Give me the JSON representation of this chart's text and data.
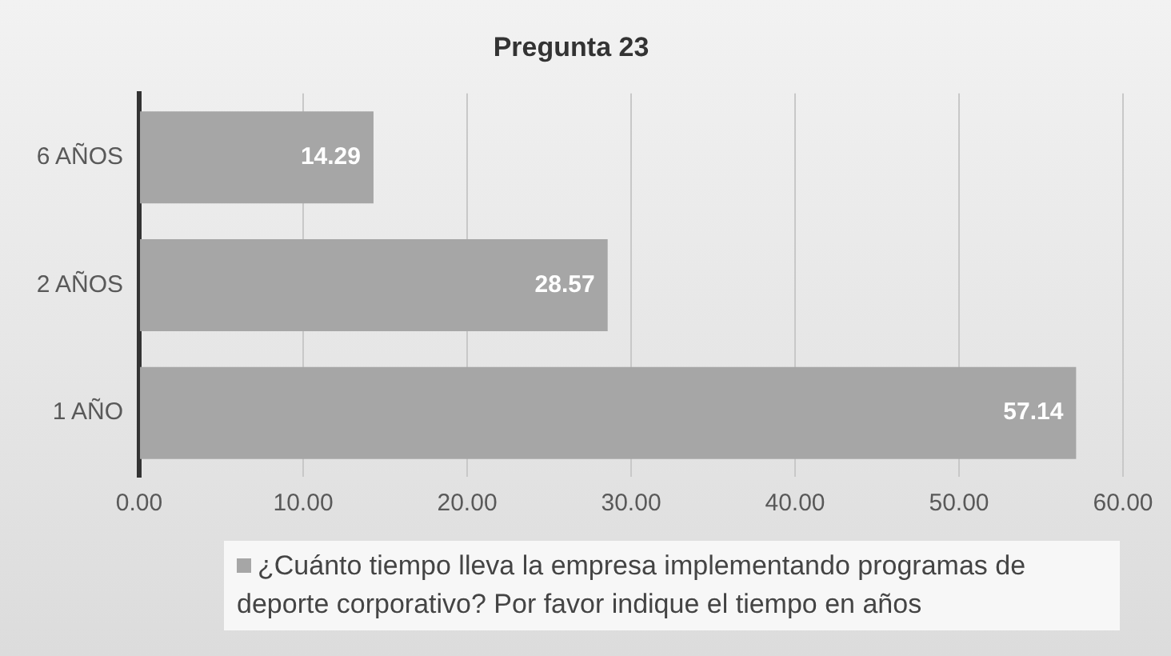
{
  "chart_data": {
    "type": "bar",
    "title": "Pregunta 23",
    "orientation": "horizontal",
    "categories": [
      "6 AÑOS",
      "2 AÑOS",
      "1 AÑO"
    ],
    "series": [
      {
        "name": "¿Cuánto tiempo lleva la empresa implementando programas de deporte corporativo? Por favor indique el tiempo en años",
        "color": "#a6a6a6",
        "values": [
          14.29,
          28.57,
          57.14
        ]
      }
    ],
    "xlim": [
      0,
      60
    ],
    "xticks": [
      {
        "value": 0,
        "label": "0.00"
      },
      {
        "value": 10,
        "label": "10.00"
      },
      {
        "value": 20,
        "label": "20.00"
      },
      {
        "value": 30,
        "label": "30.00"
      },
      {
        "value": 40,
        "label": "40.00"
      },
      {
        "value": 50,
        "label": "50.00"
      },
      {
        "value": 60,
        "label": "60.00"
      }
    ],
    "grid": "x",
    "legend": "bottom",
    "data_labels": true
  }
}
